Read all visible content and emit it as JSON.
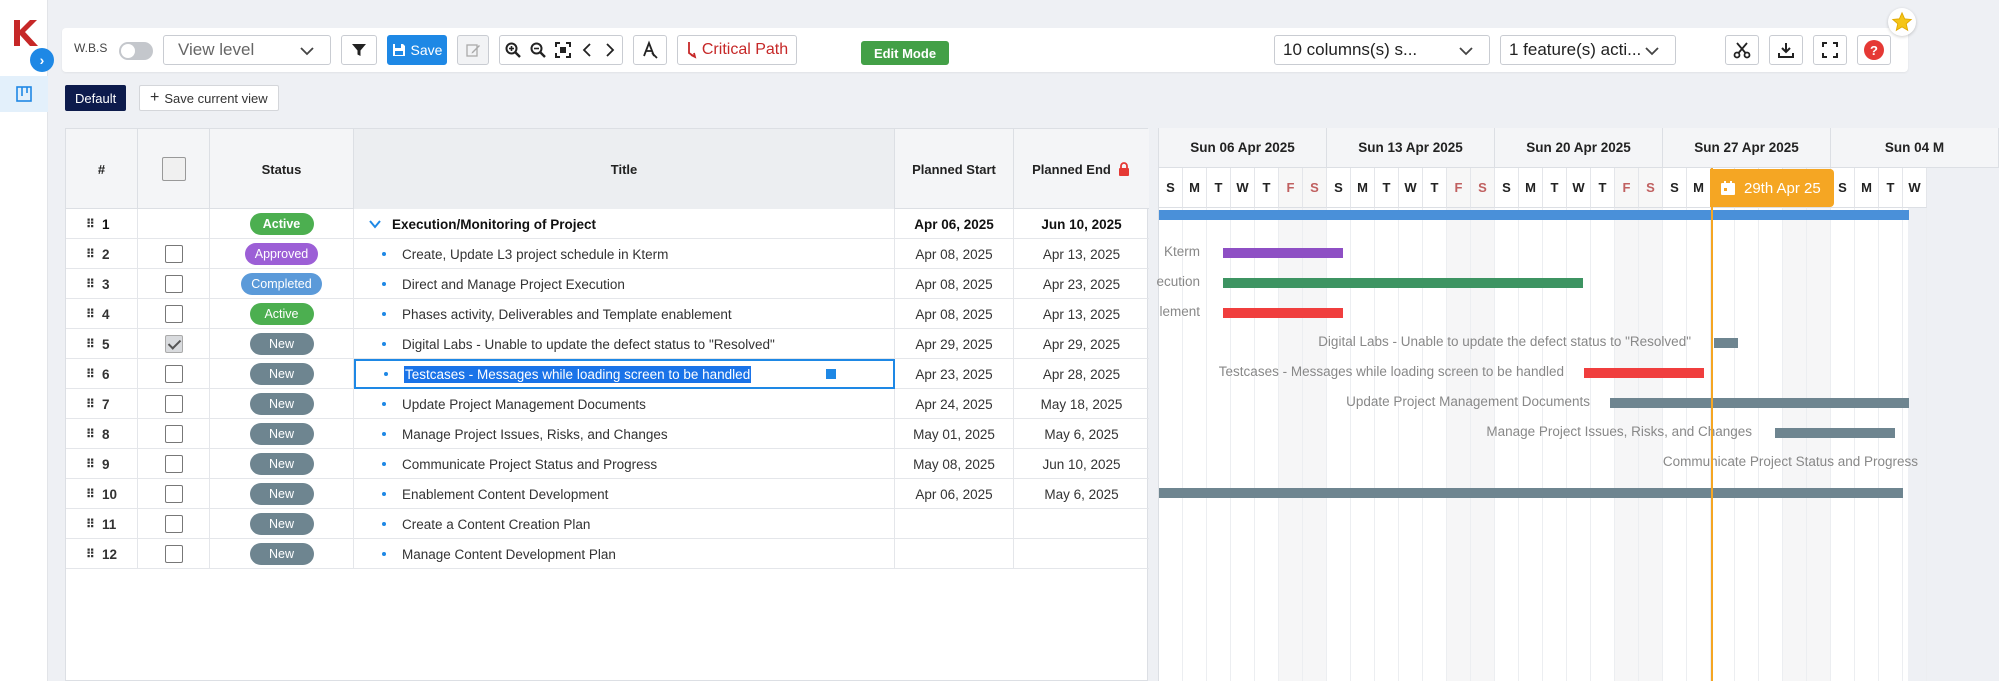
{
  "app": {
    "logo_letter": "K"
  },
  "toolbar": {
    "wbs_label": "W.B.S",
    "view_level_placeholder": "View level",
    "save_label": "Save",
    "critical_path_label": "Critical Path",
    "edit_mode_label": "Edit Mode",
    "columns_select": "10 columns(s) s...",
    "feature_select": "1 feature(s) acti...",
    "help_label": "?"
  },
  "views": {
    "default_label": "Default",
    "save_view_label": "Save current view"
  },
  "grid": {
    "headers": {
      "num": "#",
      "status": "Status",
      "title": "Title",
      "planned_start": "Planned Start",
      "planned_end": "Planned End"
    },
    "rows": [
      {
        "num": "1",
        "status": "Active",
        "title": "Execution/Monitoring of Project",
        "start": "Apr 06, 2025",
        "end": "Jun 10, 2025"
      },
      {
        "num": "2",
        "status": "Approved",
        "title": "Create, Update L3 project schedule in Kterm",
        "start": "Apr 08, 2025",
        "end": "Apr 13, 2025"
      },
      {
        "num": "3",
        "status": "Completed",
        "title": "Direct and Manage Project Execution",
        "start": "Apr 08, 2025",
        "end": "Apr 23, 2025"
      },
      {
        "num": "4",
        "status": "Active",
        "title": "Phases activity, Deliverables and Template enablement",
        "start": "Apr 08, 2025",
        "end": "Apr 13, 2025"
      },
      {
        "num": "5",
        "status": "New",
        "title": "Digital Labs - Unable to update the defect status to \"Resolved\"",
        "start": "Apr 29, 2025",
        "end": "Apr 29, 2025"
      },
      {
        "num": "6",
        "status": "New",
        "title": "Testcases - Messages while loading screen to be handled",
        "start": "Apr 23, 2025",
        "end": "Apr 28, 2025"
      },
      {
        "num": "7",
        "status": "New",
        "title": "Update Project Management Documents",
        "start": "Apr 24, 2025",
        "end": "May 18, 2025"
      },
      {
        "num": "8",
        "status": "New",
        "title": "Manage Project Issues, Risks, and Changes",
        "start": "May 01, 2025",
        "end": "May 6, 2025"
      },
      {
        "num": "9",
        "status": "New",
        "title": "Communicate Project Status and Progress",
        "start": "May 08, 2025",
        "end": "Jun 10, 2025"
      },
      {
        "num": "10",
        "status": "New",
        "title": "Enablement Content Development",
        "start": "Apr 06, 2025",
        "end": "May 6, 2025"
      },
      {
        "num": "11",
        "status": "New",
        "title": "Create a Content Creation Plan",
        "start": "",
        "end": ""
      },
      {
        "num": "12",
        "status": "New",
        "title": "Manage Content Development Plan",
        "start": "",
        "end": ""
      }
    ]
  },
  "status_colors": {
    "Active": "#4caf50",
    "Approved": "#9c5fd6",
    "Completed": "#5b9ad9",
    "New": "#6e8590"
  },
  "gantt": {
    "weeks": [
      "Sun 06 Apr 2025",
      "Sun 13 Apr 2025",
      "Sun 20 Apr 2025",
      "Sun 27 Apr 2025",
      "Sun 04 M"
    ],
    "day_letters": [
      "S",
      "M",
      "T",
      "W",
      "T",
      "F",
      "S"
    ],
    "today_label": "29th Apr 25",
    "bar_labels": {
      "r2": "Kterm",
      "r3": "ecution",
      "r4": "lement",
      "r5": "Digital Labs - Unable to update the defect status to \"Resolved\"",
      "r6": "Testcases - Messages while loading screen to be handled",
      "r7": "Update Project Management Documents",
      "r8": "Manage Project Issues, Risks, and Changes",
      "r9": "Communicate Project Status and Progress"
    },
    "colors": {
      "summary": "#4a90d9",
      "approved": "#8e4fc4",
      "completed": "#3d9462",
      "red": "#f03e3e",
      "new": "#6e8590",
      "today": "#f5a623"
    }
  }
}
